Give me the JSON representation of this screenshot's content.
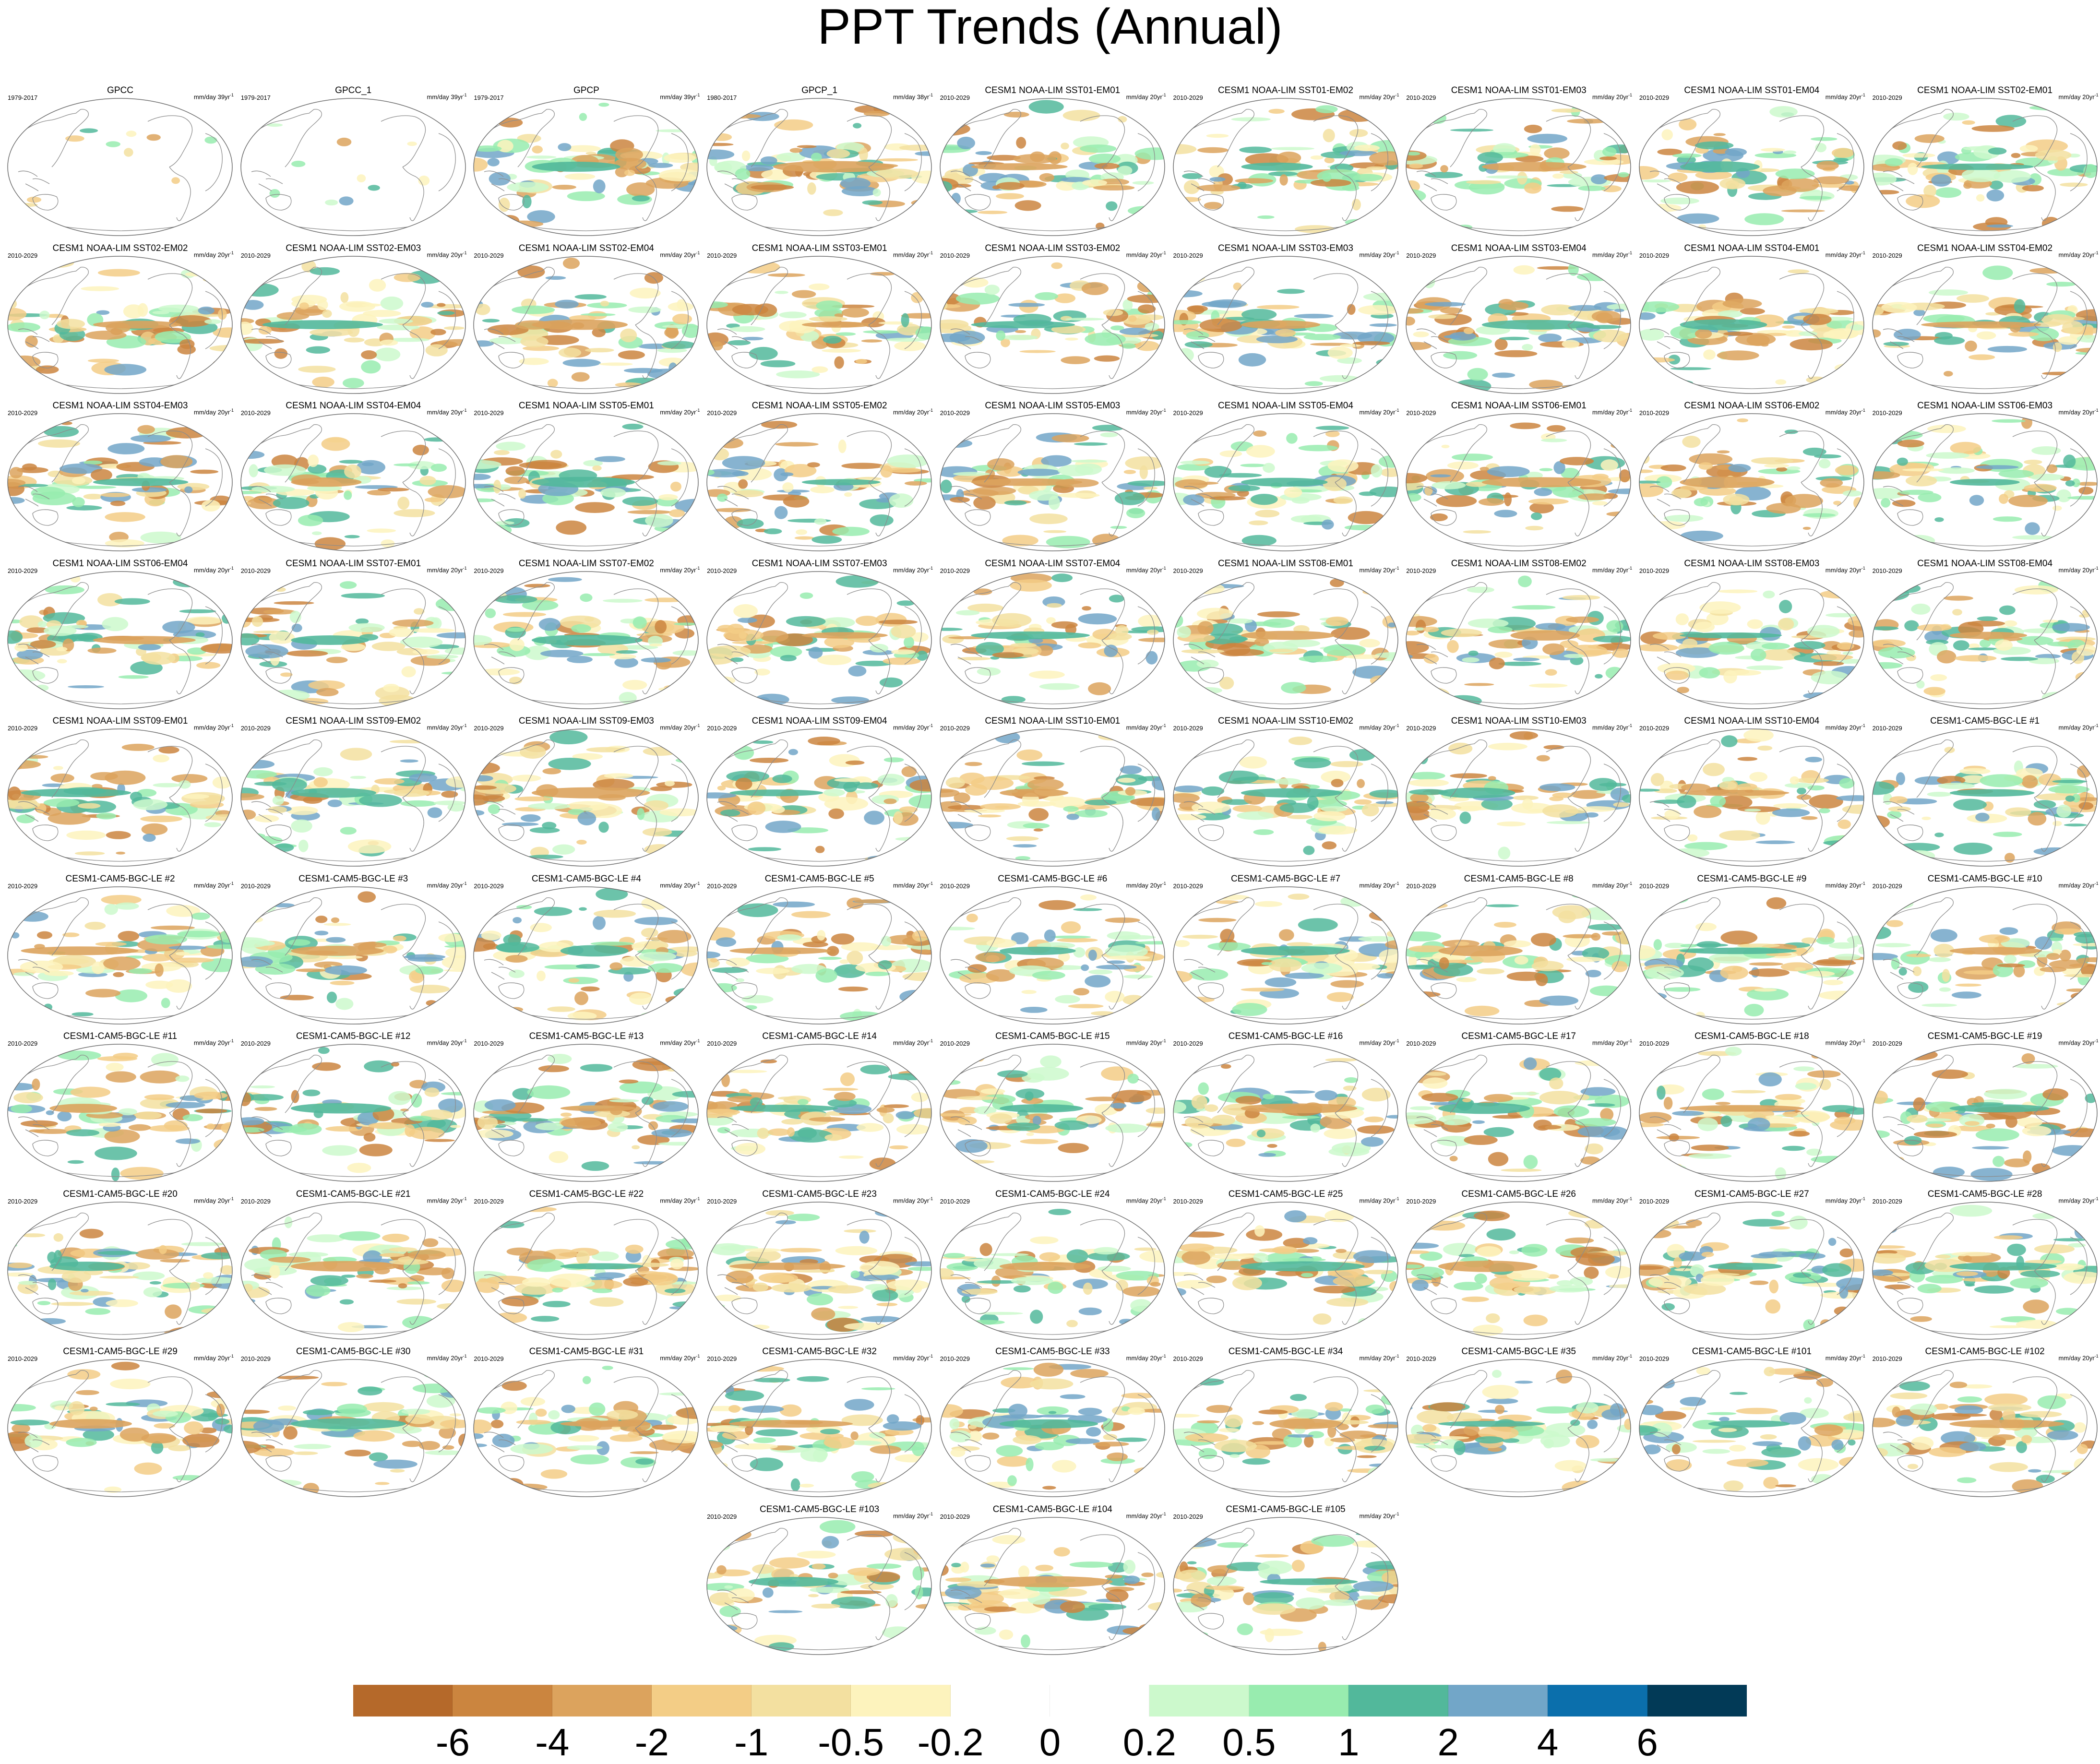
{
  "title": "PPT Trends (Annual)",
  "panels": [
    {
      "label": "GPCC",
      "period": "1979-2017",
      "units": "mm/day 39yr",
      "units_sup": "-1"
    },
    {
      "label": "GPCC_1",
      "period": "1979-2017",
      "units": "mm/day 39yr",
      "units_sup": "-1"
    },
    {
      "label": "GPCP",
      "period": "1979-2017",
      "units": "mm/day 39yr",
      "units_sup": "-1"
    },
    {
      "label": "GPCP_1",
      "period": "1980-2017",
      "units": "mm/day 38yr",
      "units_sup": "-1"
    },
    {
      "label": "CESM1 NOAA-LIM SST01-EM01",
      "period": "2010-2029",
      "units": "mm/day 20yr",
      "units_sup": "-1"
    },
    {
      "label": "CESM1 NOAA-LIM SST01-EM02",
      "period": "2010-2029",
      "units": "mm/day 20yr",
      "units_sup": "-1"
    },
    {
      "label": "CESM1 NOAA-LIM SST01-EM03",
      "period": "2010-2029",
      "units": "mm/day 20yr",
      "units_sup": "-1"
    },
    {
      "label": "CESM1 NOAA-LIM SST01-EM04",
      "period": "2010-2029",
      "units": "mm/day 20yr",
      "units_sup": "-1"
    },
    {
      "label": "CESM1 NOAA-LIM SST02-EM01",
      "period": "2010-2029",
      "units": "mm/day 20yr",
      "units_sup": "-1"
    },
    {
      "label": "CESM1 NOAA-LIM SST02-EM02",
      "period": "2010-2029",
      "units": "mm/day 20yr",
      "units_sup": "-1"
    },
    {
      "label": "CESM1 NOAA-LIM SST02-EM03",
      "period": "2010-2029",
      "units": "mm/day 20yr",
      "units_sup": "-1"
    },
    {
      "label": "CESM1 NOAA-LIM SST02-EM04",
      "period": "2010-2029",
      "units": "mm/day 20yr",
      "units_sup": "-1"
    },
    {
      "label": "CESM1 NOAA-LIM SST03-EM01",
      "period": "2010-2029",
      "units": "mm/day 20yr",
      "units_sup": "-1"
    },
    {
      "label": "CESM1 NOAA-LIM SST03-EM02",
      "period": "2010-2029",
      "units": "mm/day 20yr",
      "units_sup": "-1"
    },
    {
      "label": "CESM1 NOAA-LIM SST03-EM03",
      "period": "2010-2029",
      "units": "mm/day 20yr",
      "units_sup": "-1"
    },
    {
      "label": "CESM1 NOAA-LIM SST03-EM04",
      "period": "2010-2029",
      "units": "mm/day 20yr",
      "units_sup": "-1"
    },
    {
      "label": "CESM1 NOAA-LIM SST04-EM01",
      "period": "2010-2029",
      "units": "mm/day 20yr",
      "units_sup": "-1"
    },
    {
      "label": "CESM1 NOAA-LIM SST04-EM02",
      "period": "2010-2029",
      "units": "mm/day 20yr",
      "units_sup": "-1"
    },
    {
      "label": "CESM1 NOAA-LIM SST04-EM03",
      "period": "2010-2029",
      "units": "mm/day 20yr",
      "units_sup": "-1"
    },
    {
      "label": "CESM1 NOAA-LIM SST04-EM04",
      "period": "2010-2029",
      "units": "mm/day 20yr",
      "units_sup": "-1"
    },
    {
      "label": "CESM1 NOAA-LIM SST05-EM01",
      "period": "2010-2029",
      "units": "mm/day 20yr",
      "units_sup": "-1"
    },
    {
      "label": "CESM1 NOAA-LIM SST05-EM02",
      "period": "2010-2029",
      "units": "mm/day 20yr",
      "units_sup": "-1"
    },
    {
      "label": "CESM1 NOAA-LIM SST05-EM03",
      "period": "2010-2029",
      "units": "mm/day 20yr",
      "units_sup": "-1"
    },
    {
      "label": "CESM1 NOAA-LIM SST05-EM04",
      "period": "2010-2029",
      "units": "mm/day 20yr",
      "units_sup": "-1"
    },
    {
      "label": "CESM1 NOAA-LIM SST06-EM01",
      "period": "2010-2029",
      "units": "mm/day 20yr",
      "units_sup": "-1"
    },
    {
      "label": "CESM1 NOAA-LIM SST06-EM02",
      "period": "2010-2029",
      "units": "mm/day 20yr",
      "units_sup": "-1"
    },
    {
      "label": "CESM1 NOAA-LIM SST06-EM03",
      "period": "2010-2029",
      "units": "mm/day 20yr",
      "units_sup": "-1"
    },
    {
      "label": "CESM1 NOAA-LIM SST06-EM04",
      "period": "2010-2029",
      "units": "mm/day 20yr",
      "units_sup": "-1"
    },
    {
      "label": "CESM1 NOAA-LIM SST07-EM01",
      "period": "2010-2029",
      "units": "mm/day 20yr",
      "units_sup": "-1"
    },
    {
      "label": "CESM1 NOAA-LIM SST07-EM02",
      "period": "2010-2029",
      "units": "mm/day 20yr",
      "units_sup": "-1"
    },
    {
      "label": "CESM1 NOAA-LIM SST07-EM03",
      "period": "2010-2029",
      "units": "mm/day 20yr",
      "units_sup": "-1"
    },
    {
      "label": "CESM1 NOAA-LIM SST07-EM04",
      "period": "2010-2029",
      "units": "mm/day 20yr",
      "units_sup": "-1"
    },
    {
      "label": "CESM1 NOAA-LIM SST08-EM01",
      "period": "2010-2029",
      "units": "mm/day 20yr",
      "units_sup": "-1"
    },
    {
      "label": "CESM1 NOAA-LIM SST08-EM02",
      "period": "2010-2029",
      "units": "mm/day 20yr",
      "units_sup": "-1"
    },
    {
      "label": "CESM1 NOAA-LIM SST08-EM03",
      "period": "2010-2029",
      "units": "mm/day 20yr",
      "units_sup": "-1"
    },
    {
      "label": "CESM1 NOAA-LIM SST08-EM04",
      "period": "2010-2029",
      "units": "mm/day 20yr",
      "units_sup": "-1"
    },
    {
      "label": "CESM1 NOAA-LIM SST09-EM01",
      "period": "2010-2029",
      "units": "mm/day 20yr",
      "units_sup": "-1"
    },
    {
      "label": "CESM1 NOAA-LIM SST09-EM02",
      "period": "2010-2029",
      "units": "mm/day 20yr",
      "units_sup": "-1"
    },
    {
      "label": "CESM1 NOAA-LIM SST09-EM03",
      "period": "2010-2029",
      "units": "mm/day 20yr",
      "units_sup": "-1"
    },
    {
      "label": "CESM1 NOAA-LIM SST09-EM04",
      "period": "2010-2029",
      "units": "mm/day 20yr",
      "units_sup": "-1"
    },
    {
      "label": "CESM1 NOAA-LIM SST10-EM01",
      "period": "2010-2029",
      "units": "mm/day 20yr",
      "units_sup": "-1"
    },
    {
      "label": "CESM1 NOAA-LIM SST10-EM02",
      "period": "2010-2029",
      "units": "mm/day 20yr",
      "units_sup": "-1"
    },
    {
      "label": "CESM1 NOAA-LIM SST10-EM03",
      "period": "2010-2029",
      "units": "mm/day 20yr",
      "units_sup": "-1"
    },
    {
      "label": "CESM1 NOAA-LIM SST10-EM04",
      "period": "2010-2029",
      "units": "mm/day 20yr",
      "units_sup": "-1"
    },
    {
      "label": "CESM1-CAM5-BGC-LE #1",
      "period": "2010-2029",
      "units": "mm/day 20yr",
      "units_sup": "-1"
    },
    {
      "label": "CESM1-CAM5-BGC-LE #2",
      "period": "2010-2029",
      "units": "mm/day 20yr",
      "units_sup": "-1"
    },
    {
      "label": "CESM1-CAM5-BGC-LE #3",
      "period": "2010-2029",
      "units": "mm/day 20yr",
      "units_sup": "-1"
    },
    {
      "label": "CESM1-CAM5-BGC-LE #4",
      "period": "2010-2029",
      "units": "mm/day 20yr",
      "units_sup": "-1"
    },
    {
      "label": "CESM1-CAM5-BGC-LE #5",
      "period": "2010-2029",
      "units": "mm/day 20yr",
      "units_sup": "-1"
    },
    {
      "label": "CESM1-CAM5-BGC-LE #6",
      "period": "2010-2029",
      "units": "mm/day 20yr",
      "units_sup": "-1"
    },
    {
      "label": "CESM1-CAM5-BGC-LE #7",
      "period": "2010-2029",
      "units": "mm/day 20yr",
      "units_sup": "-1"
    },
    {
      "label": "CESM1-CAM5-BGC-LE #8",
      "period": "2010-2029",
      "units": "mm/day 20yr",
      "units_sup": "-1"
    },
    {
      "label": "CESM1-CAM5-BGC-LE #9",
      "period": "2010-2029",
      "units": "mm/day 20yr",
      "units_sup": "-1"
    },
    {
      "label": "CESM1-CAM5-BGC-LE #10",
      "period": "2010-2029",
      "units": "mm/day 20yr",
      "units_sup": "-1"
    },
    {
      "label": "CESM1-CAM5-BGC-LE #11",
      "period": "2010-2029",
      "units": "mm/day 20yr",
      "units_sup": "-1"
    },
    {
      "label": "CESM1-CAM5-BGC-LE #12",
      "period": "2010-2029",
      "units": "mm/day 20yr",
      "units_sup": "-1"
    },
    {
      "label": "CESM1-CAM5-BGC-LE #13",
      "period": "2010-2029",
      "units": "mm/day 20yr",
      "units_sup": "-1"
    },
    {
      "label": "CESM1-CAM5-BGC-LE #14",
      "period": "2010-2029",
      "units": "mm/day 20yr",
      "units_sup": "-1"
    },
    {
      "label": "CESM1-CAM5-BGC-LE #15",
      "period": "2010-2029",
      "units": "mm/day 20yr",
      "units_sup": "-1"
    },
    {
      "label": "CESM1-CAM5-BGC-LE #16",
      "period": "2010-2029",
      "units": "mm/day 20yr",
      "units_sup": "-1"
    },
    {
      "label": "CESM1-CAM5-BGC-LE #17",
      "period": "2010-2029",
      "units": "mm/day 20yr",
      "units_sup": "-1"
    },
    {
      "label": "CESM1-CAM5-BGC-LE #18",
      "period": "2010-2029",
      "units": "mm/day 20yr",
      "units_sup": "-1"
    },
    {
      "label": "CESM1-CAM5-BGC-LE #19",
      "period": "2010-2029",
      "units": "mm/day 20yr",
      "units_sup": "-1"
    },
    {
      "label": "CESM1-CAM5-BGC-LE #20",
      "period": "2010-2029",
      "units": "mm/day 20yr",
      "units_sup": "-1"
    },
    {
      "label": "CESM1-CAM5-BGC-LE #21",
      "period": "2010-2029",
      "units": "mm/day 20yr",
      "units_sup": "-1"
    },
    {
      "label": "CESM1-CAM5-BGC-LE #22",
      "period": "2010-2029",
      "units": "mm/day 20yr",
      "units_sup": "-1"
    },
    {
      "label": "CESM1-CAM5-BGC-LE #23",
      "period": "2010-2029",
      "units": "mm/day 20yr",
      "units_sup": "-1"
    },
    {
      "label": "CESM1-CAM5-BGC-LE #24",
      "period": "2010-2029",
      "units": "mm/day 20yr",
      "units_sup": "-1"
    },
    {
      "label": "CESM1-CAM5-BGC-LE #25",
      "period": "2010-2029",
      "units": "mm/day 20yr",
      "units_sup": "-1"
    },
    {
      "label": "CESM1-CAM5-BGC-LE #26",
      "period": "2010-2029",
      "units": "mm/day 20yr",
      "units_sup": "-1"
    },
    {
      "label": "CESM1-CAM5-BGC-LE #27",
      "period": "2010-2029",
      "units": "mm/day 20yr",
      "units_sup": "-1"
    },
    {
      "label": "CESM1-CAM5-BGC-LE #28",
      "period": "2010-2029",
      "units": "mm/day 20yr",
      "units_sup": "-1"
    },
    {
      "label": "CESM1-CAM5-BGC-LE #29",
      "period": "2010-2029",
      "units": "mm/day 20yr",
      "units_sup": "-1"
    },
    {
      "label": "CESM1-CAM5-BGC-LE #30",
      "period": "2010-2029",
      "units": "mm/day 20yr",
      "units_sup": "-1"
    },
    {
      "label": "CESM1-CAM5-BGC-LE #31",
      "period": "2010-2029",
      "units": "mm/day 20yr",
      "units_sup": "-1"
    },
    {
      "label": "CESM1-CAM5-BGC-LE #32",
      "period": "2010-2029",
      "units": "mm/day 20yr",
      "units_sup": "-1"
    },
    {
      "label": "CESM1-CAM5-BGC-LE #33",
      "period": "2010-2029",
      "units": "mm/day 20yr",
      "units_sup": "-1"
    },
    {
      "label": "CESM1-CAM5-BGC-LE #34",
      "period": "2010-2029",
      "units": "mm/day 20yr",
      "units_sup": "-1"
    },
    {
      "label": "CESM1-CAM5-BGC-LE #35",
      "period": "2010-2029",
      "units": "mm/day 20yr",
      "units_sup": "-1"
    },
    {
      "label": "CESM1-CAM5-BGC-LE #101",
      "period": "2010-2029",
      "units": "mm/day 20yr",
      "units_sup": "-1"
    },
    {
      "label": "CESM1-CAM5-BGC-LE #102",
      "period": "2010-2029",
      "units": "mm/day 20yr",
      "units_sup": "-1"
    },
    {
      "label": "CESM1-CAM5-BGC-LE #103",
      "period": "2010-2029",
      "units": "mm/day 20yr",
      "units_sup": "-1"
    },
    {
      "label": "CESM1-CAM5-BGC-LE #104",
      "period": "2010-2029",
      "units": "mm/day 20yr",
      "units_sup": "-1"
    },
    {
      "label": "CESM1-CAM5-BGC-LE #105",
      "period": "2010-2029",
      "units": "mm/day 20yr",
      "units_sup": "-1"
    }
  ],
  "colorbar": {
    "colors": [
      "#b5692a",
      "#cb853f",
      "#dca35d",
      "#f3cd86",
      "#f3e0a0",
      "#fdf3bd",
      "#ffffff",
      "#ffffff",
      "#ccf9cc",
      "#98ecaf",
      "#52b89b",
      "#72a6c8",
      "#0b6fac",
      "#023a57"
    ],
    "tick_labels": [
      "-6",
      "-4",
      "-2",
      "-1",
      "-0.5",
      "-0.2",
      "0",
      "0.2",
      "0.5",
      "1",
      "2",
      "4",
      "6"
    ]
  },
  "colors": {
    "land_outline": "#8c8c8c",
    "map_frame": "#6e6e6e",
    "drying": "#dca35d",
    "wetting": "#52b89b"
  }
}
